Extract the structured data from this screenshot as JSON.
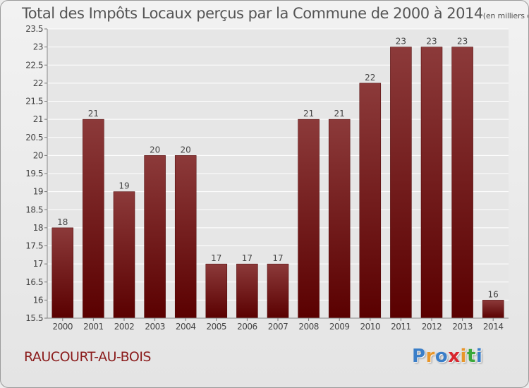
{
  "title": "Total des Impôts Locaux perçus par la Commune de 2000 à 2014",
  "unit_note": "(en milliers d'€)",
  "commune": "RAUCOURT-AU-BOIS",
  "logo": {
    "text": "Proxiti",
    "letter_colors": [
      "#3a7ec8",
      "#e8962a",
      "#3a7ec8",
      "#d8262e",
      "#e8962a",
      "#3aa83a",
      "#3a7ec8"
    ]
  },
  "colors": {
    "bar_dark": "#5a0000",
    "bar_light": "#8c3a3a",
    "grid": "#ffffff",
    "axis_text": "#444444",
    "commune_text": "#8b1c1c"
  },
  "chart_data": {
    "type": "bar",
    "title": "Total des Impôts Locaux perçus par la Commune de 2000 à 2014",
    "ylabel": "en milliers d'€",
    "xlabel": "",
    "categories": [
      "2000",
      "2001",
      "2002",
      "2003",
      "2004",
      "2005",
      "2006",
      "2007",
      "2008",
      "2009",
      "2010",
      "2011",
      "2012",
      "2013",
      "2014"
    ],
    "values": [
      18,
      21,
      19,
      20,
      20,
      17,
      17,
      17,
      21,
      21,
      22,
      23,
      23,
      23,
      16
    ],
    "ylim": [
      15.5,
      23.5
    ],
    "yticks": [
      "15.5",
      "16",
      "16.5",
      "17",
      "17.5",
      "18",
      "18.5",
      "19",
      "19.5",
      "20",
      "20.5",
      "21",
      "21.5",
      "22",
      "22.5",
      "23",
      "23.5"
    ],
    "grid": true
  }
}
